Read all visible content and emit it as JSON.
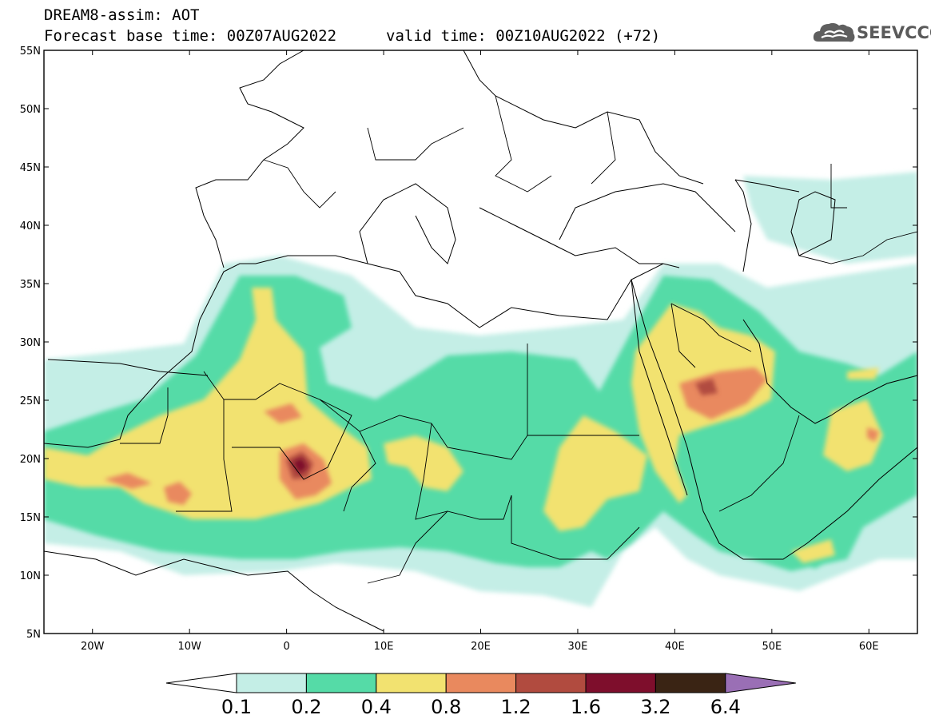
{
  "header": {
    "title_line1": "DREAM8-assim: AOT",
    "title_line2": "Forecast base time: 00Z07AUG2022",
    "valid_time": "valid time: 00Z10AUG2022 (+72)"
  },
  "logo": {
    "text": "SEEVCCC",
    "icon": "cloud-icon"
  },
  "map": {
    "variable": "AOT",
    "lon_range": [
      -25,
      65
    ],
    "lat_range": [
      5,
      55
    ],
    "lat_labels": [
      "55N",
      "50N",
      "45N",
      "40N",
      "35N",
      "30N",
      "25N",
      "20N",
      "15N",
      "10N",
      "5N"
    ],
    "lon_labels": [
      "20W",
      "10W",
      "0",
      "10E",
      "20E",
      "30E",
      "40E",
      "50E",
      "60E"
    ],
    "land_color": "#ffffff",
    "border_color": "#000000"
  },
  "colorbar": {
    "levels": [
      "0.1",
      "0.2",
      "0.4",
      "0.8",
      "1.2",
      "1.6",
      "3.2",
      "6.4"
    ],
    "under_color": "#ffffff",
    "colors": [
      "#c4eee6",
      "#55dba7",
      "#f2e270",
      "#e9895e",
      "#b14b3f",
      "#7e0e2c",
      "#3a2414"
    ],
    "over_color": "#9a6fb5"
  }
}
